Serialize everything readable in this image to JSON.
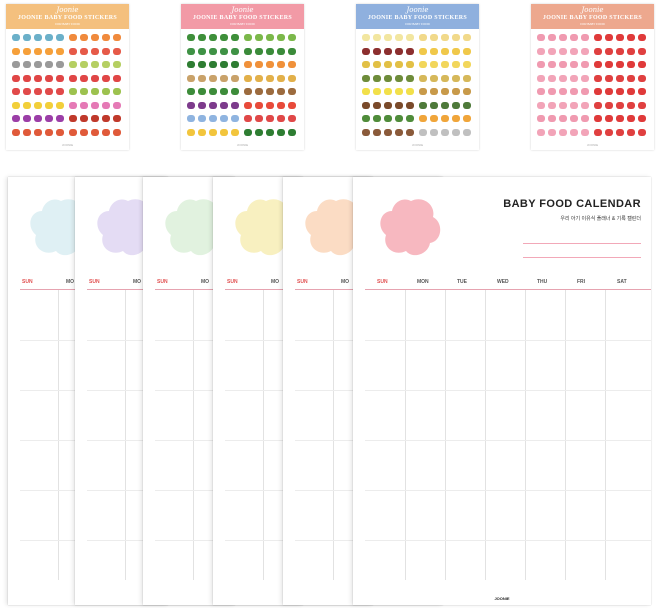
{
  "sticker_sheets": [
    {
      "script": "Joonie",
      "title": "JOONIE BABY FOOD STICKERS",
      "subtitle": "FOR BABY FOOD",
      "band_color": "#f4c07e",
      "rows": [
        [
          "#6bb0c9",
          "#f08a3c"
        ],
        [
          "#f6a03a",
          "#e65a48"
        ],
        [
          "#9a9a9a",
          "#b5cf62"
        ],
        [
          "#e04646",
          "#e04646"
        ],
        [
          "#e14a4a",
          "#9dc24f"
        ],
        [
          "#f2cf3a",
          "#e57ab6"
        ],
        [
          "#9b3ea7",
          "#c0392b"
        ],
        [
          "#e05a3a",
          "#e05a3a"
        ]
      ]
    },
    {
      "script": "Joonie",
      "title": "JOONIE BABY FOOD STICKERS",
      "subtitle": "FOR BABY FOOD",
      "band_color": "#f29aa6",
      "rows": [
        [
          "#3e8f3a",
          "#7bb84a"
        ],
        [
          "#3f9245",
          "#3b8b3a"
        ],
        [
          "#2e7d32",
          "#f0913a"
        ],
        [
          "#c9a26a",
          "#e2b04a"
        ],
        [
          "#3d8c3a",
          "#9c6b3e"
        ],
        [
          "#7d3b8c",
          "#e84a3a"
        ],
        [
          "#8fb4e0",
          "#e04848"
        ],
        [
          "#f2c53d",
          "#2e7d32"
        ]
      ]
    },
    {
      "script": "Joonie",
      "title": "JOONIE BABY FOOD STICKERS",
      "subtitle": "FOR BABY FOOD",
      "band_color": "#8fb0de",
      "rows": [
        [
          "#f2e6a0",
          "#f1d98a"
        ],
        [
          "#8c2f2f",
          "#f0c84a"
        ],
        [
          "#e2c045",
          "#f2d65a"
        ],
        [
          "#6e8c3a",
          "#d6b85a"
        ],
        [
          "#f2e04a",
          "#c89a4a"
        ],
        [
          "#7a4a2a",
          "#4f7a3a"
        ],
        [
          "#4f8c3a",
          "#f0a53a"
        ],
        [
          "#8a5a3a",
          "#c0c0c0"
        ]
      ]
    },
    {
      "script": "Joonie",
      "title": "JOONIE BABY FOOD STICKERS",
      "subtitle": "FOR BABY FOOD",
      "band_color": "#eda88e",
      "rows": [
        [
          "#f09ab0",
          "#e03a3a"
        ],
        [
          "#f2a4b8",
          "#e04040"
        ],
        [
          "#f09ab0",
          "#e03a3a"
        ],
        [
          "#f2a4b8",
          "#e04040"
        ],
        [
          "#f09ab0",
          "#e03a3a"
        ],
        [
          "#f2a4b8",
          "#e04040"
        ],
        [
          "#f09ab0",
          "#e03a3a"
        ],
        [
          "#f2a4b8",
          "#e04040"
        ]
      ]
    }
  ],
  "calendar": {
    "title": "BABY FOOD CALENDAR",
    "subtitle": "우리 아기 이유식 플래너 & 기록 캘린더",
    "days": [
      "SUN",
      "MON",
      "TUE",
      "WED",
      "THU",
      "FRI",
      "SAT"
    ],
    "partial_day": "MO",
    "footer": "JOONIE",
    "blob_colors": [
      "#dff0f4",
      "#e4dcf4",
      "#e1f2df",
      "#f8f0c0",
      "#fbdcc4",
      "#f7b8c0"
    ]
  }
}
